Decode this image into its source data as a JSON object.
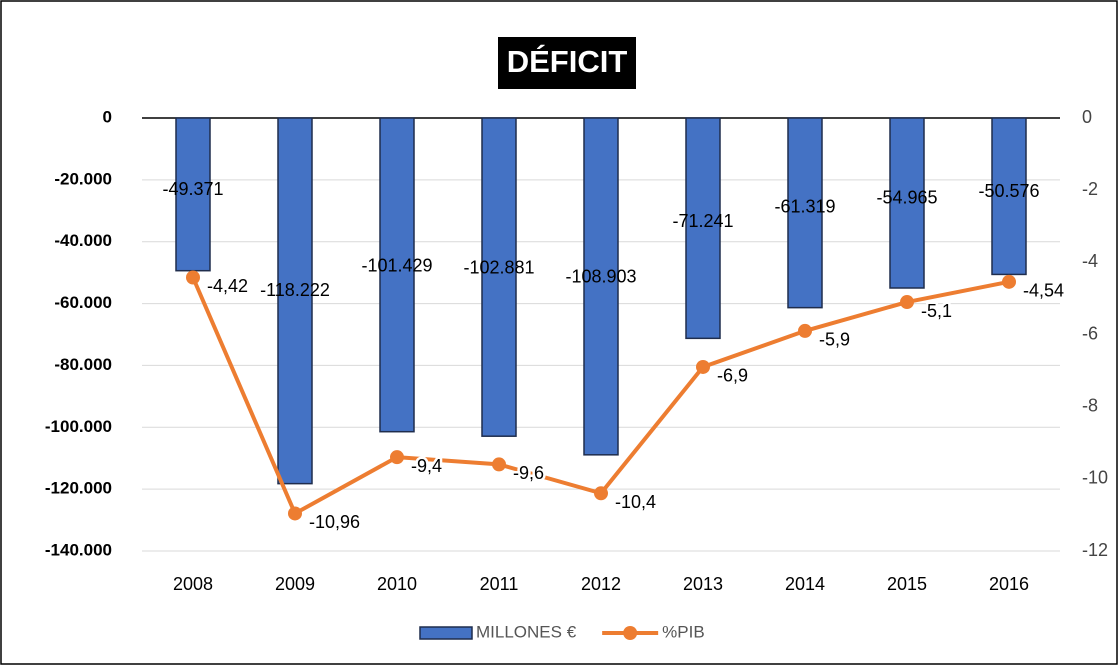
{
  "chart_data": {
    "type": "combo",
    "title": "DÉFICIT",
    "categories": [
      "2008",
      "2009",
      "2010",
      "2011",
      "2012",
      "2013",
      "2014",
      "2015",
      "2016"
    ],
    "series": [
      {
        "name": "MILLONES €",
        "type": "bar",
        "color": "#4472c4",
        "values": [
          -49371,
          -118222,
          -101429,
          -102881,
          -108903,
          -71241,
          -61319,
          -54965,
          -50576
        ],
        "value_labels": [
          "-49.371",
          "-118.222",
          "-101.429",
          "-102.881",
          "-108.903",
          "-71.241",
          "-61.319",
          "-54.965",
          "-50.576"
        ]
      },
      {
        "name": "%PIB",
        "type": "line",
        "axis": "y2",
        "color": "#ed7d31",
        "values": [
          -4.42,
          -10.96,
          -9.4,
          -9.6,
          -10.4,
          -6.9,
          -5.9,
          -5.1,
          -4.54
        ],
        "value_labels": [
          "-4,42",
          "-10,96",
          "-9,4",
          "-9,6",
          "-10,4",
          "-6,9",
          "-5,9",
          "-5,1",
          "-4,54"
        ]
      }
    ],
    "ylim": [
      -140000,
      0
    ],
    "yticks": [
      {
        "value": 0,
        "label": "0"
      },
      {
        "value": -20000,
        "label": "-20.000"
      },
      {
        "value": -40000,
        "label": "-40.000"
      },
      {
        "value": -60000,
        "label": "-60.000"
      },
      {
        "value": -80000,
        "label": "-80.000"
      },
      {
        "value": -100000,
        "label": "-100.000"
      },
      {
        "value": -120000,
        "label": "-120.000"
      },
      {
        "value": -140000,
        "label": "-140.000"
      }
    ],
    "y2lim": [
      -12,
      0
    ],
    "y2ticks": [
      0,
      -2,
      -4,
      -6,
      -8,
      -10,
      -12
    ],
    "grid": true,
    "legend": "bottom"
  }
}
